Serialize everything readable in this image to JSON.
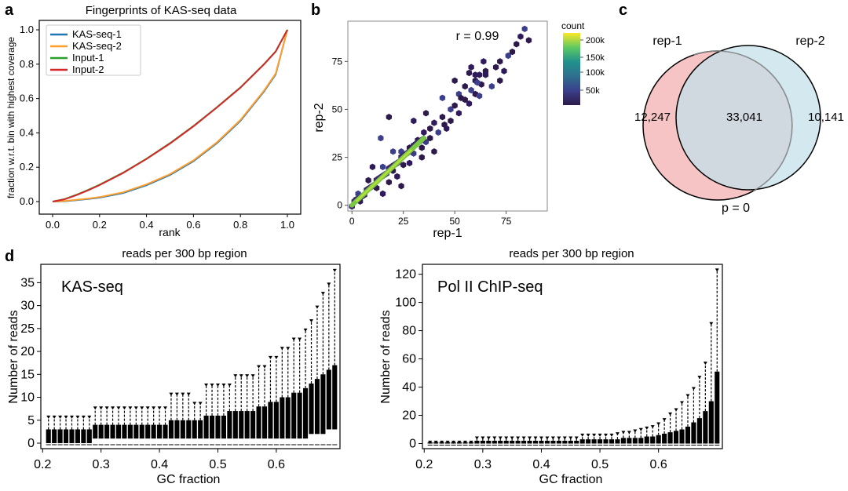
{
  "chart_data": [
    {
      "panel": "a",
      "type": "line",
      "title": "Fingerprints of KAS-seq data",
      "xlabel": "rank",
      "ylabel": "fraction w.r.t. bin with highest coverage",
      "xlim": [
        0,
        1
      ],
      "ylim": [
        0,
        1
      ],
      "xticks": [
        "0.0",
        "0.2",
        "0.4",
        "0.6",
        "0.8",
        "1.0"
      ],
      "yticks": [
        "0.0",
        "0.2",
        "0.4",
        "0.6",
        "0.8",
        "1.0"
      ],
      "x": [
        0.0,
        0.05,
        0.1,
        0.15,
        0.2,
        0.3,
        0.4,
        0.5,
        0.6,
        0.7,
        0.8,
        0.9,
        0.95,
        1.0
      ],
      "series": [
        {
          "name": "KAS-seq-1",
          "color": "#1f77b4",
          "values": [
            0.0,
            0.002,
            0.008,
            0.015,
            0.023,
            0.05,
            0.095,
            0.155,
            0.235,
            0.34,
            0.47,
            0.64,
            0.74,
            1.0
          ]
        },
        {
          "name": "KAS-seq-2",
          "color": "#ff9f2e",
          "values": [
            0.0,
            0.003,
            0.01,
            0.017,
            0.026,
            0.054,
            0.1,
            0.16,
            0.24,
            0.345,
            0.475,
            0.645,
            0.745,
            1.0
          ]
        },
        {
          "name": "Input-1",
          "color": "#2ca02c",
          "values": [
            0.0,
            0.014,
            0.039,
            0.067,
            0.098,
            0.168,
            0.25,
            0.34,
            0.44,
            0.55,
            0.665,
            0.8,
            0.875,
            1.0
          ]
        },
        {
          "name": "Input-2",
          "color": "#d62728",
          "values": [
            0.0,
            0.013,
            0.037,
            0.065,
            0.096,
            0.166,
            0.248,
            0.338,
            0.438,
            0.548,
            0.663,
            0.798,
            0.873,
            1.0
          ]
        }
      ]
    },
    {
      "panel": "b",
      "type": "scatter",
      "title": "",
      "xlabel": "rep-1",
      "ylabel": "rep-2",
      "xlim": [
        -2,
        95
      ],
      "ylim": [
        -3,
        96
      ],
      "xticks": [
        0,
        25,
        50,
        75
      ],
      "yticks": [
        0,
        25,
        50,
        75
      ],
      "annotation": "r = 0.99",
      "colorbar": {
        "title": "count",
        "ticks": [
          "50k",
          "100k",
          "150k",
          "200k"
        ]
      },
      "points": [
        [
          2,
          3
        ],
        [
          4,
          2
        ],
        [
          3,
          6
        ],
        [
          8,
          13
        ],
        [
          12,
          9
        ],
        [
          15,
          6
        ],
        [
          15,
          20
        ],
        [
          18,
          12
        ],
        [
          20,
          18
        ],
        [
          22,
          15
        ],
        [
          24,
          28
        ],
        [
          25,
          21
        ],
        [
          28,
          30
        ],
        [
          28,
          22
        ],
        [
          30,
          27
        ],
        [
          32,
          34
        ],
        [
          34,
          30
        ],
        [
          35,
          38
        ],
        [
          36,
          33
        ],
        [
          38,
          40
        ],
        [
          38,
          35
        ],
        [
          40,
          43
        ],
        [
          42,
          38
        ],
        [
          44,
          46
        ],
        [
          45,
          42
        ],
        [
          46,
          40
        ],
        [
          48,
          50
        ],
        [
          48,
          44
        ],
        [
          50,
          52
        ],
        [
          52,
          48
        ],
        [
          52,
          58
        ],
        [
          55,
          55
        ],
        [
          55,
          62
        ],
        [
          57,
          53
        ],
        [
          58,
          60
        ],
        [
          60,
          58
        ],
        [
          60,
          65
        ],
        [
          62,
          68
        ],
        [
          62,
          57
        ],
        [
          63,
          63
        ],
        [
          65,
          70
        ],
        [
          65,
          68
        ],
        [
          68,
          62
        ],
        [
          70,
          72
        ],
        [
          72,
          75
        ],
        [
          74,
          70
        ],
        [
          76,
          78
        ],
        [
          78,
          80
        ],
        [
          80,
          84
        ],
        [
          82,
          88
        ],
        [
          84,
          92
        ],
        [
          86,
          86
        ],
        [
          18,
          46
        ],
        [
          30,
          44
        ],
        [
          14,
          35
        ],
        [
          50,
          65
        ],
        [
          57,
          69
        ],
        [
          64,
          75
        ],
        [
          44,
          56
        ],
        [
          72,
          65
        ],
        [
          40,
          28
        ],
        [
          60,
          68
        ],
        [
          61,
          64
        ],
        [
          53,
          56
        ],
        [
          24,
          10
        ],
        [
          10,
          20
        ],
        [
          20,
          28
        ],
        [
          34,
          25
        ],
        [
          36,
          48
        ],
        [
          58,
          72
        ]
      ],
      "dense_line": {
        "from": 0,
        "to": 35
      }
    },
    {
      "panel": "c",
      "type": "venn",
      "sets": [
        "rep-1",
        "rep-2"
      ],
      "only_left": "12,247",
      "overlap": "33,041",
      "only_right": "10,141",
      "pvalue": "p = 0",
      "left_color": "#f6c4c4",
      "right_color": "#c4e0e9"
    },
    {
      "panel": "d-left",
      "type": "boxplot",
      "title": "reads per 300 bp region",
      "label": "KAS-seq",
      "xlabel": "GC fraction",
      "ylabel": "Number of reads",
      "xlim": [
        0.205,
        0.705
      ],
      "ylim": [
        -1.2,
        39
      ],
      "xticks": [
        "0.2",
        "0.3",
        "0.4",
        "0.5",
        "0.6"
      ],
      "yticks": [
        0,
        5,
        10,
        15,
        20,
        25,
        30,
        35
      ],
      "x_start": 0.21,
      "x_step": 0.01,
      "q1": [
        0,
        0,
        0,
        0,
        0,
        0,
        0,
        0,
        1,
        1,
        1,
        1,
        1,
        1,
        1,
        1,
        1,
        1,
        1,
        1,
        1,
        1,
        1,
        1,
        1,
        1,
        1,
        1,
        1,
        1,
        1,
        1,
        1,
        1,
        1,
        1,
        1,
        1,
        1,
        1,
        1,
        1,
        1,
        1,
        1,
        2,
        2,
        2,
        3,
        3
      ],
      "q3": [
        3,
        3,
        3,
        3,
        3,
        3,
        3,
        3,
        4,
        4,
        4,
        4,
        4,
        4,
        4,
        4,
        4,
        4,
        4,
        4,
        4,
        5,
        5,
        5,
        5,
        5,
        5,
        6,
        6,
        6,
        6,
        7,
        7,
        7,
        7,
        7,
        8,
        8,
        9,
        9,
        10,
        10,
        11,
        11,
        12,
        13,
        14,
        15,
        16,
        17
      ],
      "whisker": [
        6,
        6,
        6,
        6,
        6,
        6,
        6,
        6,
        8,
        8,
        8,
        8,
        8,
        8,
        8,
        8,
        8,
        8,
        8,
        8,
        8,
        11,
        11,
        11,
        11,
        9,
        9,
        13,
        13,
        13,
        13,
        13,
        15,
        15,
        15,
        15,
        17,
        17,
        19,
        19,
        21,
        21,
        23,
        23,
        25,
        27,
        30,
        33,
        35,
        38
      ]
    },
    {
      "panel": "d-right",
      "type": "boxplot",
      "title": "reads per 300 bp region",
      "label": "Pol II ChIP-seq",
      "xlabel": "GC fraction",
      "ylabel": "Number of reads",
      "xlim": [
        0.205,
        0.705
      ],
      "ylim": [
        -3.6,
        127
      ],
      "xticks": [
        "0.2",
        "0.3",
        "0.4",
        "0.5",
        "0.6"
      ],
      "yticks": [
        0,
        20,
        40,
        60,
        80,
        100,
        120
      ],
      "x_start": 0.21,
      "x_step": 0.01,
      "q1": [
        0,
        0,
        0,
        0,
        0,
        0,
        0,
        0,
        0,
        0,
        0,
        0,
        0,
        0,
        0,
        0,
        0,
        0,
        0,
        0,
        0,
        0,
        0,
        0,
        0,
        0,
        0,
        0,
        0,
        0,
        0,
        0,
        0,
        0,
        0,
        0,
        0,
        0,
        0,
        0,
        0,
        0,
        0,
        0,
        0,
        0,
        0,
        0,
        0,
        0
      ],
      "q3": [
        1,
        1,
        1,
        1,
        1,
        1,
        1,
        1,
        2,
        2,
        2,
        2,
        2,
        2,
        2,
        2,
        2,
        2,
        2,
        2,
        2,
        2,
        2,
        2,
        2,
        2,
        3,
        3,
        3,
        3,
        3,
        3,
        3,
        4,
        4,
        4,
        4,
        5,
        5,
        6,
        7,
        8,
        9,
        10,
        12,
        15,
        18,
        23,
        30,
        51
      ],
      "whisker": [
        2,
        2,
        2,
        2,
        2,
        2,
        2,
        2,
        5,
        5,
        5,
        5,
        5,
        5,
        5,
        5,
        5,
        5,
        5,
        5,
        5,
        5,
        5,
        5,
        5,
        5,
        7,
        7,
        7,
        7,
        7,
        7,
        8,
        9,
        9,
        10,
        11,
        12,
        13,
        15,
        18,
        22,
        25,
        30,
        35,
        40,
        48,
        58,
        86,
        124
      ]
    }
  ],
  "panel_labels": {
    "a": "a",
    "b": "b",
    "c": "c",
    "d": "d"
  }
}
